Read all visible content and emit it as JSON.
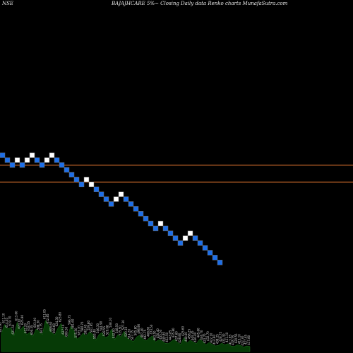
{
  "header": {
    "exchange": "NSE",
    "title": "BAJAJHCARE 5%~ Closing Daily data Renko charts MunafaSutra.com"
  },
  "chart_data": {
    "type": "renko",
    "title": "BAJAJHCARE 5%~ Closing Daily data Renko charts MunafaSutra.com",
    "colors": {
      "up": "#ffffff",
      "down": "#1e6fe8",
      "border": "#6a6a6a",
      "support_lines": "#c8692a",
      "volume": "#063a06",
      "volume_edge": "#1f8a1f"
    },
    "brick_levels": [
      0,
      1,
      2,
      1,
      2,
      1,
      0,
      1,
      2,
      1,
      0,
      1,
      2,
      3,
      4,
      5,
      6,
      5,
      6,
      7,
      8,
      9,
      10,
      9,
      8,
      9,
      10,
      11,
      12,
      13,
      14,
      15,
      14,
      15,
      16,
      17,
      18,
      17,
      16,
      17,
      18,
      19,
      20,
      21,
      22
    ],
    "brick_directions": [
      "down",
      "down",
      "down",
      "up",
      "down",
      "up",
      "up",
      "down",
      "down",
      "up",
      "up",
      "down",
      "down",
      "down",
      "down",
      "down",
      "down",
      "up",
      "up",
      "down",
      "down",
      "down",
      "down",
      "up",
      "up",
      "down",
      "down",
      "down",
      "down",
      "down",
      "down",
      "down",
      "up",
      "down",
      "down",
      "down",
      "down",
      "up",
      "up",
      "down",
      "down",
      "down",
      "down",
      "down",
      "down"
    ],
    "horizontal_lines": [
      "upper",
      "lower"
    ],
    "volume_labels": [
      "622.95",
      "611.10",
      "614.05",
      "619.70",
      "621.50",
      "613.60",
      "620.10",
      "625.90",
      "612.20",
      "618.55",
      "609.35",
      "603.90",
      "598.30",
      "601.75",
      "611.05",
      "612.85",
      "606.60",
      "608.60",
      "624.30",
      "623.80",
      "627.10",
      "606.50",
      "596.75",
      "581.60",
      "575.50",
      "583.70",
      "580.70",
      "592.45",
      "559.80",
      "561.95",
      "553.40",
      "546.30",
      "541.90",
      "528.55",
      "529.08",
      "538.10",
      "532.00",
      "548.50",
      "525.50",
      "527.30",
      "520.10",
      "514.20",
      "507.15",
      "505.80",
      "498.90",
      "487.40",
      "492.75",
      "468.80",
      "473.50",
      "463.50",
      "450.40",
      "455.50",
      "449.80",
      "452.50",
      "443.85",
      "435.80",
      "437.60",
      "428.80",
      "425.60",
      "448.60",
      "458.25",
      "444.35",
      "436.40",
      "445.60",
      "446.70",
      "423.70",
      "432.70",
      "422.10",
      "414.60",
      "438.25",
      "428.75",
      "431.30",
      "421.10",
      "413.95",
      "418.35",
      "420.55",
      "415.10",
      "422.30",
      "427.45",
      "417.80"
    ],
    "volume_values": [
      0.32,
      0.48,
      0.4,
      0.43,
      0.28,
      0.52,
      0.38,
      0.45,
      0.3,
      0.34,
      0.27,
      0.4,
      0.36,
      0.3,
      0.55,
      0.47,
      0.33,
      0.3,
      0.42,
      0.5,
      0.28,
      0.24,
      0.45,
      0.38,
      0.22,
      0.26,
      0.33,
      0.28,
      0.35,
      0.31,
      0.2,
      0.3,
      0.34,
      0.25,
      0.27,
      0.4,
      0.21,
      0.3,
      0.26,
      0.36,
      0.24,
      0.2,
      0.18,
      0.26,
      0.29,
      0.22,
      0.19,
      0.24,
      0.28,
      0.17,
      0.21,
      0.19,
      0.15,
      0.14,
      0.18,
      0.22,
      0.16,
      0.13,
      0.25,
      0.15,
      0.2,
      0.17,
      0.14,
      0.22,
      0.18,
      0.12,
      0.16,
      0.13,
      0.1,
      0.11,
      0.15,
      0.12,
      0.14,
      0.1,
      0.09,
      0.12,
      0.11,
      0.08,
      0.1,
      0.09
    ]
  }
}
